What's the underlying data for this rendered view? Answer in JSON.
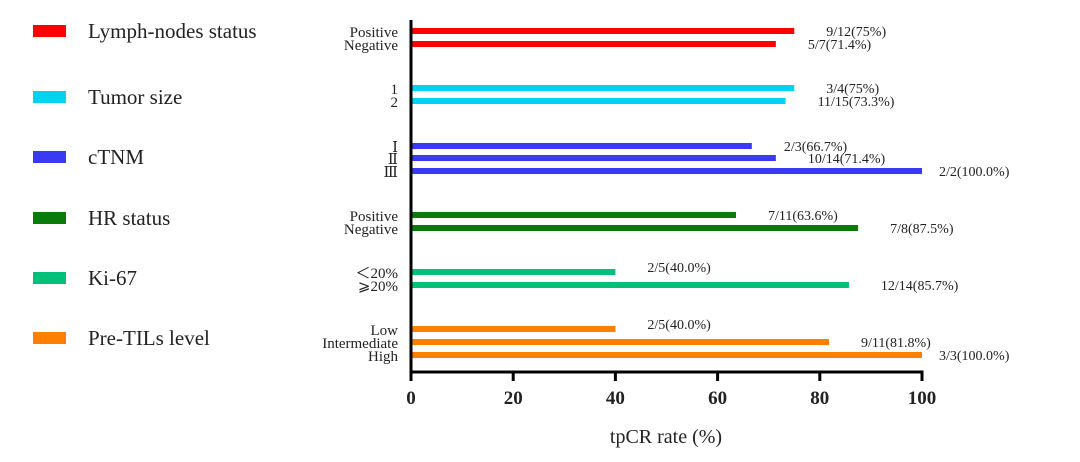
{
  "chart_data": {
    "type": "bar",
    "orientation": "horizontal",
    "xlabel": "tpCR rate (%)",
    "xlim": [
      0,
      100
    ],
    "xticks": [
      "0",
      "20",
      "40",
      "60",
      "80",
      "100"
    ],
    "grid": false,
    "legend_position": "left",
    "groups": [
      {
        "name": "Lymph-nodes status",
        "color": "#ff0000",
        "bars": [
          {
            "category": "Positive",
            "value": 75,
            "label": "9/12(75%)"
          },
          {
            "category": "Negative",
            "value": 71.4,
            "label": "5/7(71.4%)"
          }
        ]
      },
      {
        "name": "Tumor size",
        "color": "#00d2f2",
        "bars": [
          {
            "category": "1",
            "value": 75,
            "label": "3/4(75%)"
          },
          {
            "category": "2",
            "value": 73.3,
            "label": "11/15(73.3%)"
          }
        ]
      },
      {
        "name": "cTNM",
        "color": "#3a3af5",
        "bars": [
          {
            "category": "Ⅰ",
            "value": 66.7,
            "label": "2/3(66.7%)"
          },
          {
            "category": "Ⅱ",
            "value": 71.4,
            "label": "10/14(71.4%)"
          },
          {
            "category": "Ⅲ",
            "value": 100,
            "label": "2/2(100.0%)"
          }
        ]
      },
      {
        "name": "HR status",
        "color": "#0a7a0a",
        "bars": [
          {
            "category": "Positive",
            "value": 63.6,
            "label": "7/11(63.6%)"
          },
          {
            "category": "Negative",
            "value": 87.5,
            "label": "7/8(87.5%)"
          }
        ]
      },
      {
        "name": "Ki-67",
        "color": "#00c07a",
        "bars": [
          {
            "category": "＜20%",
            "value": 40,
            "label": "2/5(40.0%)"
          },
          {
            "category": "⩾20%",
            "value": 85.7,
            "label": "12/14(85.7%)"
          }
        ]
      },
      {
        "name": "Pre-TILs level",
        "color": "#ff8000",
        "bars": [
          {
            "category": "Low",
            "value": 40,
            "label": "2/5(40.0%)"
          },
          {
            "category": "Intermediate",
            "value": 81.8,
            "label": "9/11(81.8%)"
          },
          {
            "category": "High",
            "value": 100,
            "label": "3/3(100.0%)"
          }
        ]
      }
    ]
  }
}
